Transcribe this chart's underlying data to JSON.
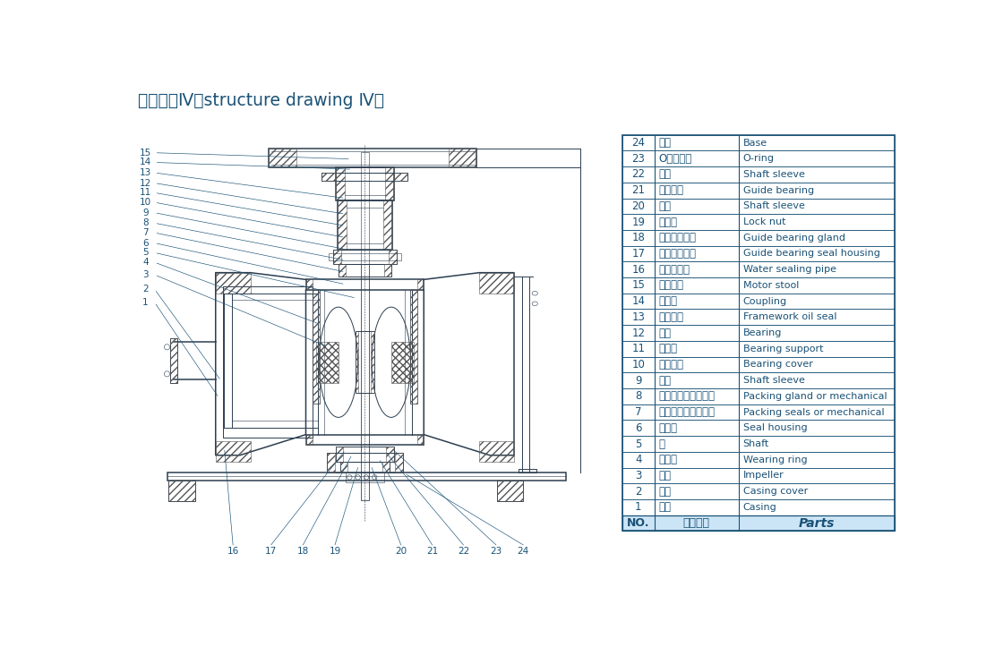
{
  "title": "结构形式Ⅳ（structure drawing Ⅳ）",
  "title_color": "#1a5276",
  "title_fontsize": 13.5,
  "table_header": [
    "NO.",
    "零件名称",
    "Parts"
  ],
  "table_header_bg": "#cce5f6",
  "table_data_reversed": [
    [
      "24",
      "底座",
      "Base"
    ],
    [
      "23",
      "O型密封圈",
      "O-ring"
    ],
    [
      "22",
      "轴套",
      "Shaft sleeve"
    ],
    [
      "21",
      "水导轴承",
      "Guide bearing"
    ],
    [
      "20",
      "轴套",
      "Shaft sleeve"
    ],
    [
      "19",
      "圆螺母",
      "Lock nut"
    ],
    [
      "18",
      "水导轴承压盖",
      "Guide bearing gland"
    ],
    [
      "17",
      "导轴承密封体",
      "Guide bearing seal housing"
    ],
    [
      "16",
      "水封管部件",
      "Water sealing pipe"
    ],
    [
      "15",
      "电机支座",
      "Motor stool"
    ],
    [
      "14",
      "联轴器",
      "Coupling"
    ],
    [
      "13",
      "骨架油封",
      "Framework oil seal"
    ],
    [
      "12",
      "轴承",
      "Bearing"
    ],
    [
      "11",
      "轴承体",
      "Bearing support"
    ],
    [
      "10",
      "轴承压盖",
      "Bearing cover"
    ],
    [
      "9",
      "轴套",
      "Shaft sleeve"
    ],
    [
      "8",
      "机封压盖或填料压盖",
      "Packing gland or mechanical"
    ],
    [
      "7",
      "机械密封或填料密封",
      "Packing seals or mechanical"
    ],
    [
      "6",
      "密封体",
      "Seal housing"
    ],
    [
      "5",
      "轴",
      "Shaft"
    ],
    [
      "4",
      "密封环",
      "Wearing ring"
    ],
    [
      "3",
      "叶轮",
      "Impeller"
    ],
    [
      "2",
      "泵盖",
      "Casing cover"
    ],
    [
      "1",
      "泵体",
      "Casing"
    ]
  ],
  "left_labels": [
    "15",
    "14",
    "13",
    "12",
    "11",
    "10",
    "9",
    "8",
    "7",
    "6",
    "5",
    "4",
    "3",
    "2",
    "1"
  ],
  "bottom_labels": [
    "16",
    "17",
    "18",
    "19",
    "20",
    "21",
    "22",
    "23",
    "24"
  ],
  "draw_color": "#2c3e50",
  "hatch_color": "#555555",
  "line_color": "#1a5276",
  "bg_color": "#ffffff",
  "table_border_color": "#1a5276",
  "table_text_color": "#1a5276"
}
